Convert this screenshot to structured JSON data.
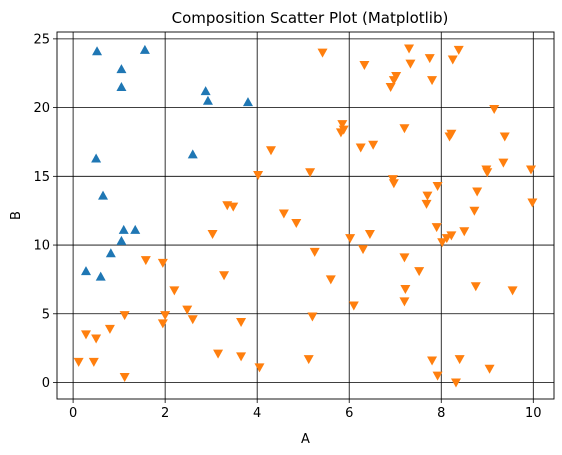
{
  "chart_data": {
    "type": "scatter",
    "title": "Composition Scatter Plot (Matplotlib)",
    "xlabel": "A",
    "ylabel": "B",
    "xlim": [
      -0.35,
      10.45
    ],
    "ylim": [
      -1.2,
      25.5
    ],
    "xticks": [
      0,
      2,
      4,
      6,
      8,
      10
    ],
    "yticks": [
      0,
      5,
      10,
      15,
      20,
      25
    ],
    "grid": true,
    "series": [
      {
        "marker": "triangle-up",
        "color": "#1f77b4",
        "points": [
          [
            0.52,
            24.1
          ],
          [
            1.56,
            24.2
          ],
          [
            1.05,
            22.8
          ],
          [
            1.05,
            21.5
          ],
          [
            2.88,
            21.2
          ],
          [
            2.93,
            20.5
          ],
          [
            3.8,
            20.4
          ],
          [
            0.5,
            16.3
          ],
          [
            2.6,
            16.6
          ],
          [
            0.65,
            13.6
          ],
          [
            1.1,
            11.1
          ],
          [
            1.35,
            11.1
          ],
          [
            1.05,
            10.3
          ],
          [
            0.82,
            9.4
          ],
          [
            0.28,
            8.1
          ],
          [
            0.6,
            7.7
          ]
        ]
      },
      {
        "marker": "triangle-down",
        "color": "#ff7f0e",
        "points": [
          [
            5.42,
            24.0
          ],
          [
            7.3,
            24.3
          ],
          [
            8.38,
            24.2
          ],
          [
            6.33,
            23.1
          ],
          [
            7.75,
            23.6
          ],
          [
            8.25,
            23.5
          ],
          [
            7.33,
            23.2
          ],
          [
            6.97,
            22.0
          ],
          [
            7.02,
            22.3
          ],
          [
            7.8,
            22.0
          ],
          [
            6.9,
            21.5
          ],
          [
            9.15,
            19.9
          ],
          [
            5.85,
            18.8
          ],
          [
            5.88,
            18.4
          ],
          [
            5.82,
            18.2
          ],
          [
            7.2,
            18.5
          ],
          [
            8.22,
            18.1
          ],
          [
            8.18,
            17.9
          ],
          [
            9.38,
            17.9
          ],
          [
            6.52,
            17.3
          ],
          [
            6.25,
            17.1
          ],
          [
            4.3,
            16.9
          ],
          [
            9.35,
            16.0
          ],
          [
            9.95,
            15.5
          ],
          [
            8.98,
            15.5
          ],
          [
            9.0,
            15.3
          ],
          [
            5.15,
            15.3
          ],
          [
            4.02,
            15.1
          ],
          [
            6.95,
            14.8
          ],
          [
            6.97,
            14.5
          ],
          [
            7.7,
            13.6
          ],
          [
            7.68,
            13.0
          ],
          [
            7.92,
            14.3
          ],
          [
            8.78,
            13.9
          ],
          [
            9.98,
            13.1
          ],
          [
            3.35,
            12.9
          ],
          [
            3.48,
            12.8
          ],
          [
            8.72,
            12.5
          ],
          [
            4.58,
            12.3
          ],
          [
            4.85,
            11.6
          ],
          [
            7.9,
            11.3
          ],
          [
            8.22,
            10.7
          ],
          [
            8.5,
            11.0
          ],
          [
            3.03,
            10.8
          ],
          [
            6.02,
            10.5
          ],
          [
            6.45,
            10.8
          ],
          [
            8.02,
            10.2
          ],
          [
            8.12,
            10.5
          ],
          [
            1.58,
            8.9
          ],
          [
            1.95,
            8.7
          ],
          [
            6.3,
            9.7
          ],
          [
            5.25,
            9.5
          ],
          [
            7.2,
            9.1
          ],
          [
            7.52,
            8.1
          ],
          [
            3.28,
            7.8
          ],
          [
            5.6,
            7.5
          ],
          [
            8.75,
            7.0
          ],
          [
            9.55,
            6.7
          ],
          [
            7.22,
            6.8
          ],
          [
            2.2,
            6.7
          ],
          [
            7.2,
            5.9
          ],
          [
            6.1,
            5.6
          ],
          [
            2.48,
            5.3
          ],
          [
            1.12,
            4.9
          ],
          [
            2.0,
            4.9
          ],
          [
            5.2,
            4.8
          ],
          [
            2.6,
            4.6
          ],
          [
            3.65,
            4.4
          ],
          [
            1.95,
            4.3
          ],
          [
            0.8,
            3.9
          ],
          [
            0.28,
            3.5
          ],
          [
            0.5,
            3.2
          ],
          [
            3.15,
            2.1
          ],
          [
            3.65,
            1.9
          ],
          [
            5.12,
            1.7
          ],
          [
            8.4,
            1.7
          ],
          [
            7.8,
            1.6
          ],
          [
            0.12,
            1.5
          ],
          [
            0.45,
            1.5
          ],
          [
            4.05,
            1.1
          ],
          [
            9.05,
            1.0
          ],
          [
            1.12,
            0.4
          ],
          [
            7.92,
            0.5
          ],
          [
            8.32,
            0.0
          ]
        ]
      }
    ]
  }
}
